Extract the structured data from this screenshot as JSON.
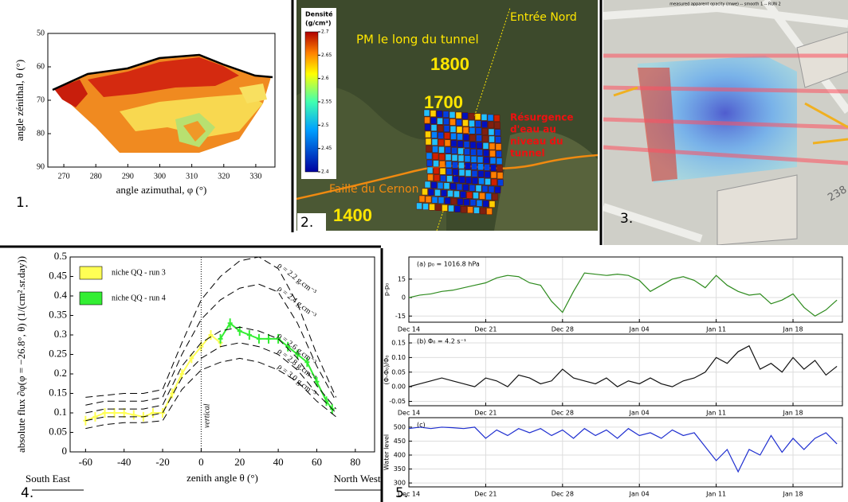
{
  "chart_data": [
    {
      "type": "contour",
      "xlabel": "angle azimuthal, φ (°)",
      "ylabel": "angle zénithal, θ (°)",
      "xlim": [
        265,
        336
      ],
      "xticks": [
        270,
        280,
        290,
        300,
        310,
        320,
        330
      ],
      "ylim": [
        50,
        90
      ],
      "yticks": [
        50,
        60,
        70,
        80,
        90
      ],
      "y_inverted": true
    },
    {
      "type": "line",
      "xlabel": "zenith angle θ (°)",
      "ylabel": "absolute flux ∂φ(φ = −26.8°, θ) (1/(cm².sr.day))",
      "xlim": [
        -68,
        90
      ],
      "xticks": [
        -60,
        -40,
        -20,
        0,
        20,
        40,
        60,
        80
      ],
      "ylim": [
        0,
        0.5
      ],
      "yticks": [
        0,
        0.05,
        0.1,
        0.15,
        0.2,
        0.25,
        0.3,
        0.35,
        0.4,
        0.45,
        0.5
      ],
      "legend": "upper left",
      "vertical_label": "vertical",
      "left_note": "South East",
      "right_note": "North West",
      "series": [
        {
          "name": "niche QQ - run 3",
          "color": "#ffff55",
          "x": [
            -60,
            -55,
            -50,
            -45,
            -40,
            -35,
            -30,
            -25,
            -20,
            -15,
            -10,
            -5,
            0,
            5,
            10
          ],
          "values": [
            0.08,
            0.09,
            0.1,
            0.1,
            0.1,
            0.095,
            0.09,
            0.1,
            0.1,
            0.15,
            0.2,
            0.24,
            0.27,
            0.3,
            0.28
          ]
        },
        {
          "name": "niche QQ - run 4",
          "color": "#33ee33",
          "x": [
            10,
            15,
            20,
            25,
            30,
            35,
            40,
            45,
            50,
            55,
            60,
            65,
            68
          ],
          "values": [
            0.29,
            0.33,
            0.31,
            0.3,
            0.29,
            0.29,
            0.29,
            0.27,
            0.25,
            0.23,
            0.18,
            0.13,
            0.11
          ]
        },
        {
          "name": "ρ = 2.2 g.cm⁻³",
          "color": "#000000",
          "style": "dashed",
          "x": [
            -60,
            -50,
            -40,
            -30,
            -20,
            -10,
            0,
            10,
            20,
            30,
            40,
            50,
            60,
            70
          ],
          "values": [
            0.14,
            0.145,
            0.15,
            0.15,
            0.16,
            0.28,
            0.39,
            0.45,
            0.49,
            0.5,
            0.47,
            0.38,
            0.25,
            0.14
          ]
        },
        {
          "name": "ρ = 2.4 g.cm⁻³",
          "color": "#000000",
          "style": "dashed",
          "x": [
            -60,
            -50,
            -40,
            -30,
            -20,
            -10,
            0,
            10,
            20,
            30,
            40,
            50,
            60,
            70
          ],
          "values": [
            0.12,
            0.13,
            0.13,
            0.13,
            0.14,
            0.25,
            0.34,
            0.39,
            0.42,
            0.43,
            0.41,
            0.33,
            0.22,
            0.13
          ]
        },
        {
          "name": "ρ = 2.6 g.cm⁻³",
          "color": "#000000",
          "style": "dashed",
          "x": [
            -60,
            -50,
            -40,
            -30,
            -20,
            -10,
            0,
            10,
            20,
            30,
            40,
            50,
            60,
            70
          ],
          "values": [
            0.1,
            0.11,
            0.11,
            0.11,
            0.12,
            0.22,
            0.28,
            0.31,
            0.32,
            0.31,
            0.29,
            0.24,
            0.17,
            0.11
          ]
        },
        {
          "name": "ρ = 2.8 g.cm⁻³",
          "color": "#000000",
          "style": "dashed",
          "x": [
            -60,
            -50,
            -40,
            -30,
            -20,
            -10,
            0,
            10,
            20,
            30,
            40,
            50,
            60,
            70
          ],
          "values": [
            0.08,
            0.09,
            0.09,
            0.09,
            0.1,
            0.19,
            0.24,
            0.27,
            0.28,
            0.27,
            0.25,
            0.21,
            0.15,
            0.1
          ]
        },
        {
          "name": "ρ = 3.0 g.cm⁻³",
          "color": "#000000",
          "style": "dashed",
          "x": [
            -60,
            -50,
            -40,
            -30,
            -20,
            -10,
            0,
            10,
            20,
            30,
            40,
            50,
            60,
            70
          ],
          "values": [
            0.06,
            0.07,
            0.075,
            0.075,
            0.08,
            0.16,
            0.21,
            0.23,
            0.24,
            0.23,
            0.21,
            0.18,
            0.13,
            0.09
          ]
        }
      ]
    },
    {
      "type": "line",
      "annotation": "(a) p₀ = 1016.8 hPa",
      "ylabel": "p-p₀",
      "grid": true,
      "xlim": [
        0,
        39.5
      ],
      "xticks": [
        {
          "value": 0,
          "label": "Dec 14"
        },
        {
          "value": 7,
          "label": "Dec 21"
        },
        {
          "value": 14,
          "label": "Dec 28"
        },
        {
          "value": 21,
          "label": "Jan 04"
        },
        {
          "value": 28,
          "label": "Jan 11"
        },
        {
          "value": 35,
          "label": "Jan 18"
        }
      ],
      "ylim": [
        -20,
        33
      ],
      "yticks": [
        -15,
        0,
        15
      ],
      "x": [
        0,
        1,
        2,
        3,
        4,
        5,
        6,
        7,
        8,
        9,
        10,
        11,
        12,
        13,
        14,
        15,
        16,
        17,
        18,
        19,
        20,
        21,
        22,
        23,
        24,
        25,
        26,
        27,
        28,
        29,
        30,
        31,
        32,
        33,
        34,
        35,
        36,
        37,
        38,
        39
      ],
      "series": [
        {
          "color": "#2e8b1e",
          "values": [
            0,
            2,
            3,
            5,
            6,
            8,
            10,
            12,
            16,
            18,
            17,
            12,
            10,
            -3,
            -12,
            5,
            20,
            19,
            18,
            19,
            18,
            14,
            5,
            10,
            15,
            17,
            14,
            8,
            18,
            10,
            5,
            2,
            3,
            -5,
            -2,
            3,
            -8,
            -15,
            -10,
            -2
          ]
        }
      ]
    },
    {
      "type": "line",
      "annotation": "(b) Φ₀ = 4.2 s⁻¹",
      "ylabel": "(Φ-Φ₀)/Φ₀",
      "grid": true,
      "xlim": [
        0,
        39.5
      ],
      "xticks": [
        {
          "value": 0,
          "label": "Dec 14"
        },
        {
          "value": 7,
          "label": "Dec 21"
        },
        {
          "value": 14,
          "label": "Dec 28"
        },
        {
          "value": 21,
          "label": "Jan 04"
        },
        {
          "value": 28,
          "label": "Jan 11"
        },
        {
          "value": 35,
          "label": "Jan 18"
        }
      ],
      "ylim": [
        -0.065,
        0.18
      ],
      "yticks": [
        {
          "value": -0.05,
          "label": "-0.05"
        },
        {
          "value": 0,
          "label": "0.00"
        },
        {
          "value": 0.05,
          "label": "0.05"
        },
        {
          "value": 0.1,
          "label": "0.10"
        },
        {
          "value": 0.15,
          "label": "0.15"
        }
      ],
      "x": [
        0,
        1,
        2,
        3,
        4,
        5,
        6,
        7,
        8,
        9,
        10,
        11,
        12,
        13,
        14,
        15,
        16,
        17,
        18,
        19,
        20,
        21,
        22,
        23,
        24,
        25,
        26,
        27,
        28,
        29,
        30,
        31,
        32,
        33,
        34,
        35,
        36,
        37,
        38,
        39
      ],
      "series": [
        {
          "color": "#111111",
          "values": [
            0,
            0.01,
            0.02,
            0.03,
            0.02,
            0.01,
            0,
            0.03,
            0.02,
            0,
            0.04,
            0.03,
            0.01,
            0.02,
            0.06,
            0.03,
            0.02,
            0.01,
            0.03,
            0,
            0.02,
            0.01,
            0.03,
            0.01,
            0,
            0.02,
            0.03,
            0.05,
            0.1,
            0.08,
            0.12,
            0.14,
            0.06,
            0.08,
            0.05,
            0.1,
            0.06,
            0.09,
            0.04,
            0.07
          ]
        }
      ]
    },
    {
      "type": "line",
      "annotation": "(c)",
      "ylabel": "Water level",
      "grid": true,
      "xlim": [
        0,
        39.5
      ],
      "xticks": [
        {
          "value": 0,
          "label": "Dec 14"
        },
        {
          "value": 7,
          "label": "Dec 21"
        },
        {
          "value": 14,
          "label": "Dec 28"
        },
        {
          "value": 21,
          "label": "Jan 04"
        },
        {
          "value": 28,
          "label": "Jan 11"
        },
        {
          "value": 35,
          "label": "Jan 18"
        }
      ],
      "ylim": [
        286,
        534
      ],
      "yticks": [
        300,
        350,
        400,
        450,
        500
      ],
      "x": [
        0,
        1,
        2,
        3,
        4,
        5,
        6,
        7,
        8,
        9,
        10,
        11,
        12,
        13,
        14,
        15,
        16,
        17,
        18,
        19,
        20,
        21,
        22,
        23,
        24,
        25,
        26,
        27,
        28,
        29,
        30,
        31,
        32,
        33,
        34,
        35,
        36,
        37,
        38,
        39
      ],
      "series": [
        {
          "color": "#1f2fd0",
          "values": [
            495,
            500,
            495,
            500,
            498,
            495,
            500,
            460,
            490,
            470,
            495,
            480,
            495,
            470,
            490,
            460,
            495,
            470,
            490,
            460,
            495,
            470,
            480,
            460,
            490,
            470,
            480,
            430,
            380,
            420,
            340,
            420,
            400,
            470,
            410,
            460,
            420,
            460,
            480,
            440
          ]
        }
      ]
    }
  ],
  "images": {
    "panel2": {
      "colorbar": {
        "title": "Densité",
        "unit": "(g/cm³)",
        "range": [
          2.4,
          2.7
        ],
        "ticks": [
          2.7,
          2.65,
          2.6,
          2.55,
          2.5,
          2.45,
          2.4
        ]
      },
      "entrance": "Entrée Nord",
      "tunnel": "PM le long du tunnel",
      "markers": [
        "1800",
        "1700",
        "1400"
      ],
      "resurgence": [
        "Résurgence",
        "d'eau au",
        "niveau du",
        "tunnel"
      ],
      "fault": "Faille du Cernon"
    },
    "panel3": {
      "title": "measured apparent opacity (mwe) -- smooth 1 -- RUN 2",
      "street_number": "238"
    }
  },
  "panel_labels": [
    "1.",
    "2.",
    "3.",
    "4.",
    "5."
  ]
}
